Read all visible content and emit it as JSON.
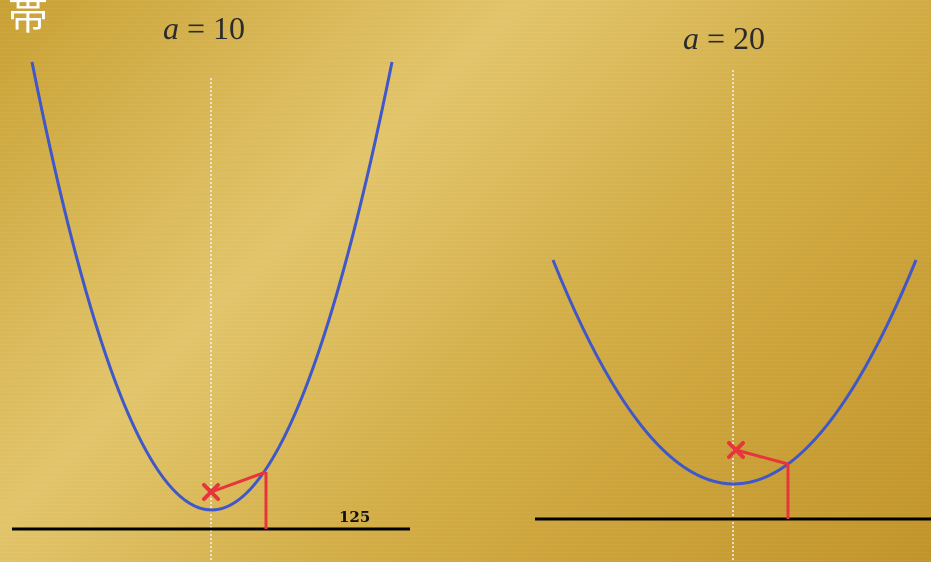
{
  "corner_glyph": "帯",
  "panels": [
    {
      "var": "a",
      "eq": " = 10",
      "value": 10
    },
    {
      "var": "a",
      "eq": " = 20",
      "value": 20
    }
  ],
  "annotation": "125",
  "colors": {
    "curve": "#3f57c8",
    "marker": "#e8343c",
    "ground": "#000000",
    "axis": "#f2f2f2"
  }
}
